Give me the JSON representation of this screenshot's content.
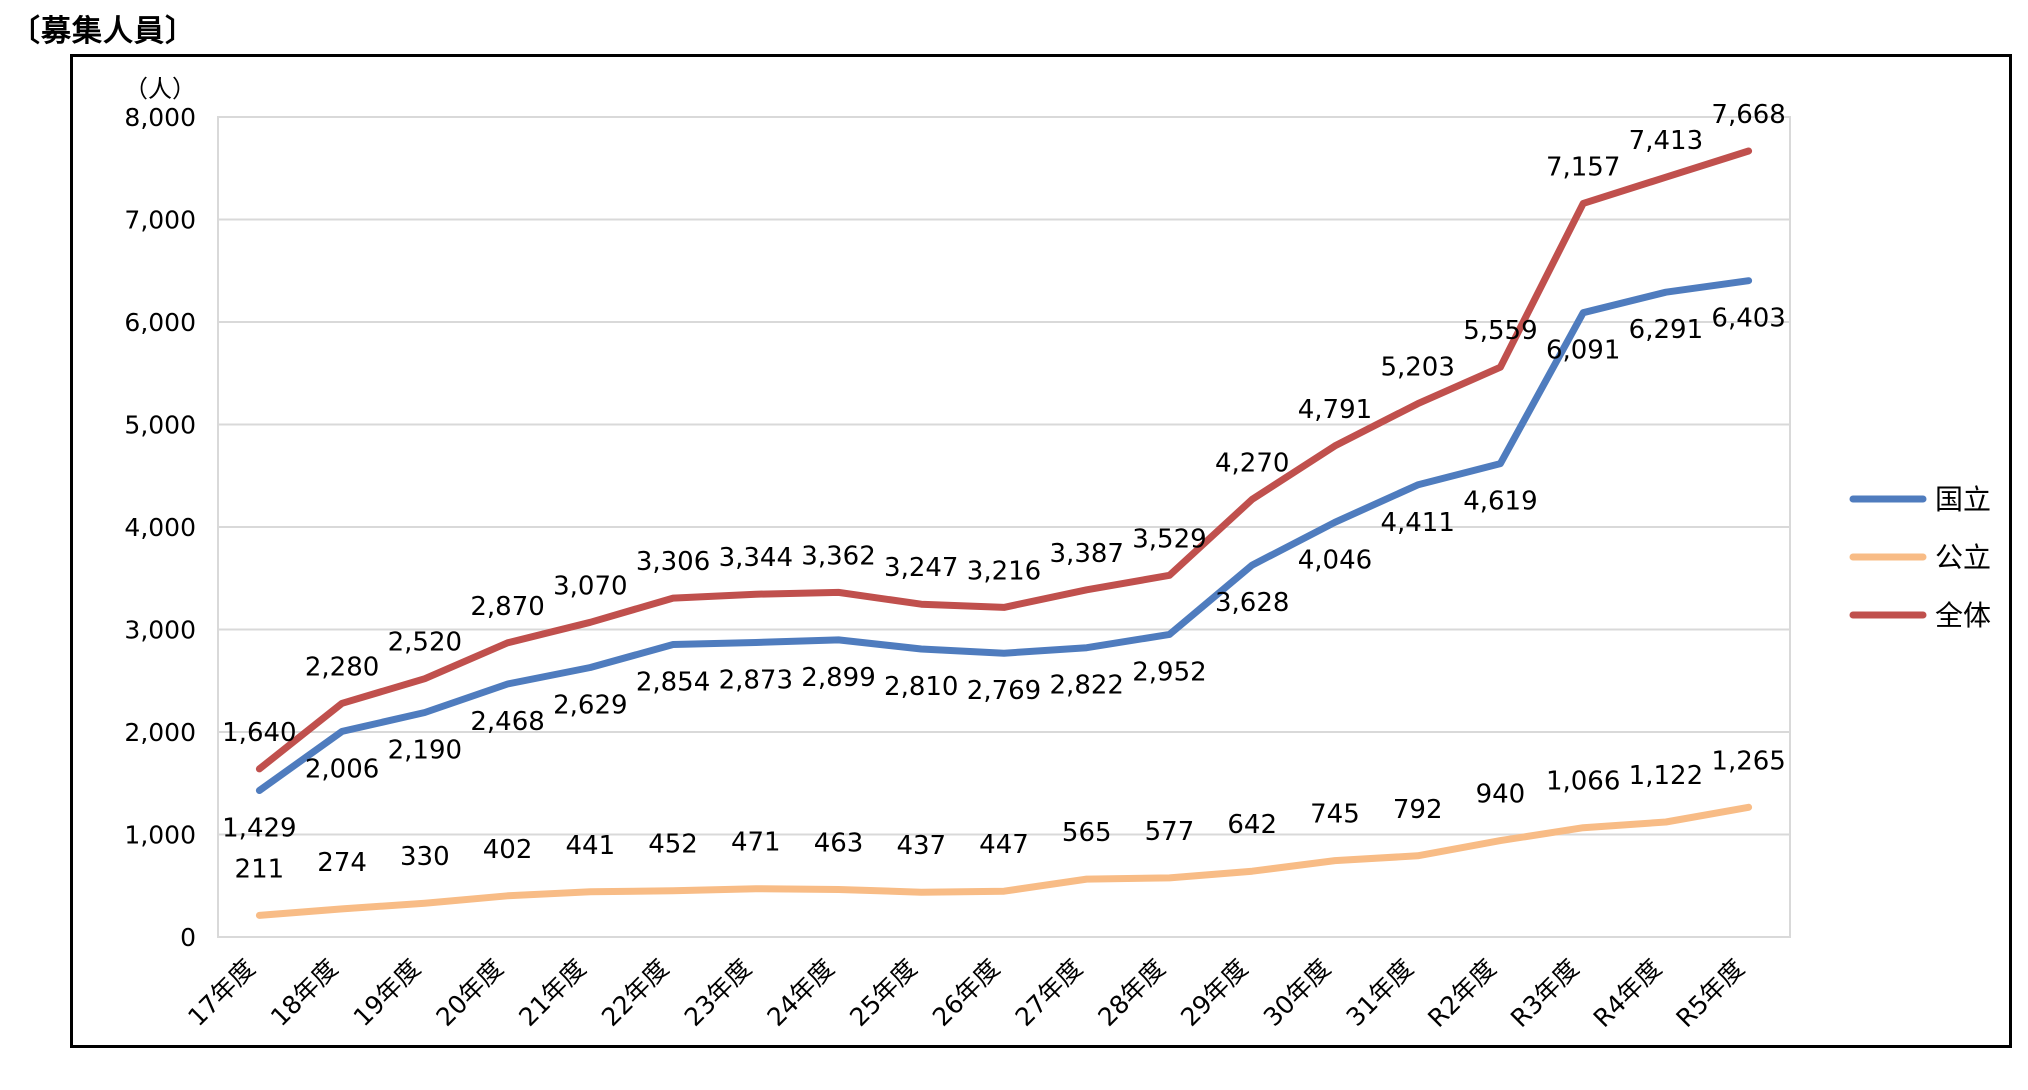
{
  "page": {
    "title": "〔募集人員〕"
  },
  "chart_data": {
    "type": "line",
    "title": "",
    "unit_label": "（人）",
    "xlabel": "",
    "ylabel": "",
    "ylim": [
      0,
      8000
    ],
    "yticks": [
      0,
      1000,
      2000,
      3000,
      4000,
      5000,
      6000,
      7000,
      8000
    ],
    "ytick_labels": [
      "0",
      "1,000",
      "2,000",
      "3,000",
      "4,000",
      "5,000",
      "6,000",
      "7,000",
      "8,000"
    ],
    "grid": true,
    "legend_position": "right",
    "categories": [
      "17年度",
      "18年度",
      "19年度",
      "20年度",
      "21年度",
      "22年度",
      "23年度",
      "24年度",
      "25年度",
      "26年度",
      "27年度",
      "28年度",
      "29年度",
      "30年度",
      "31年度",
      "R2年度",
      "R3年度",
      "R4年度",
      "R5年度"
    ],
    "series": [
      {
        "name": "国立",
        "color": "#4F7CBE",
        "values": [
          1429,
          2006,
          2190,
          2468,
          2629,
          2854,
          2873,
          2899,
          2810,
          2769,
          2822,
          2952,
          3628,
          4046,
          4411,
          4619,
          6091,
          6291,
          6403
        ],
        "labels": [
          "1,429",
          "2,006",
          "2,190",
          "2,468",
          "2,629",
          "2,854",
          "2,873",
          "2,899",
          "2,810",
          "2,769",
          "2,822",
          "2,952",
          "3,628",
          "4,046",
          "4,411",
          "4,619",
          "6,091",
          "6,291",
          "6,403"
        ]
      },
      {
        "name": "公立",
        "color": "#F8BC86",
        "values": [
          211,
          274,
          330,
          402,
          441,
          452,
          471,
          463,
          437,
          447,
          565,
          577,
          642,
          745,
          792,
          940,
          1066,
          1122,
          1265
        ],
        "labels": [
          "211",
          "274",
          "330",
          "402",
          "441",
          "452",
          "471",
          "463",
          "437",
          "447",
          "565",
          "577",
          "642",
          "745",
          "792",
          "940",
          "1,066",
          "1,122",
          "1,265"
        ]
      },
      {
        "name": "全体",
        "color": "#C0504D",
        "values": [
          1640,
          2280,
          2520,
          2870,
          3070,
          3306,
          3344,
          3362,
          3247,
          3216,
          3387,
          3529,
          4270,
          4791,
          5203,
          5559,
          7157,
          7413,
          7668
        ],
        "labels": [
          "1,640",
          "2,280",
          "2,520",
          "2,870",
          "3,070",
          "3,306",
          "3,344",
          "3,362",
          "3,247",
          "3,216",
          "3,387",
          "3,529",
          "4,270",
          "4,791",
          "5,203",
          "5,559",
          "7,157",
          "7,413",
          "7,668"
        ]
      }
    ]
  }
}
